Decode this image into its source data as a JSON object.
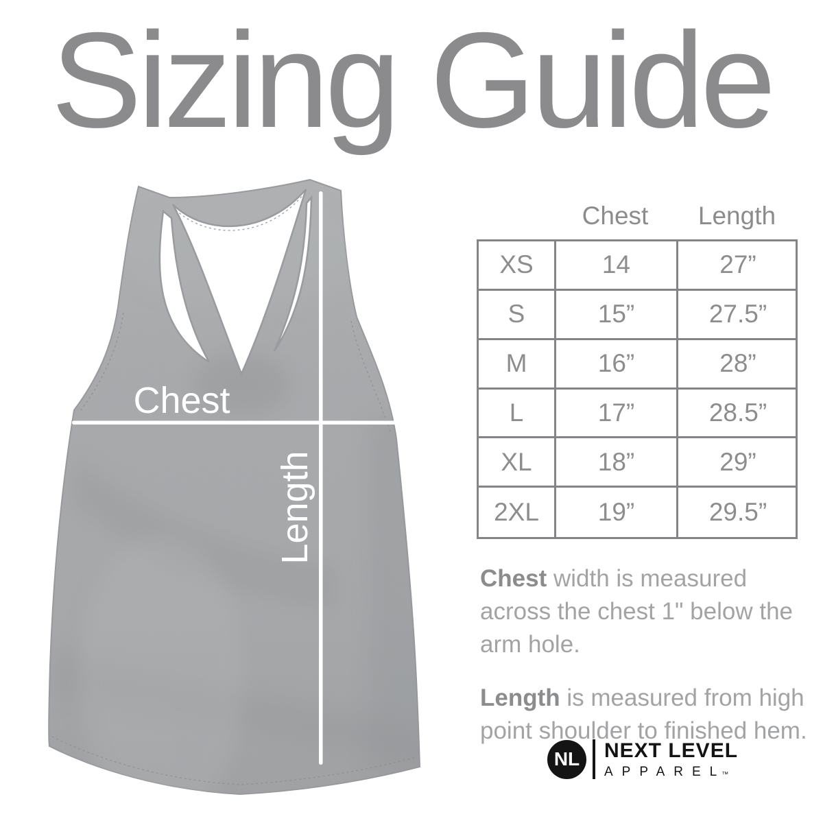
{
  "title": "Sizing Guide",
  "garment": {
    "chest_label": "Chest",
    "length_label": "Length"
  },
  "size_table": {
    "col_headers": [
      "Chest",
      "Length"
    ],
    "rows": [
      {
        "size": "XS",
        "chest": "14",
        "length": "27”"
      },
      {
        "size": "S",
        "chest": "15”",
        "length": "27.5”"
      },
      {
        "size": "M",
        "chest": "16”",
        "length": "28”"
      },
      {
        "size": "L",
        "chest": "17”",
        "length": "28.5”"
      },
      {
        "size": "XL",
        "chest": "18”",
        "length": "29”"
      },
      {
        "size": "2XL",
        "chest": "19”",
        "length": "29.5”"
      }
    ]
  },
  "notes": [
    {
      "term": "Chest",
      "text": " width is measured across the chest 1\" below the arm hole."
    },
    {
      "term": "Length",
      "text": " is measured from high point shoulder to finished hem."
    }
  ],
  "logo": {
    "monogram": "NL",
    "brand": "NEXT LEVEL",
    "sub": "APPAREL",
    "tm": "™"
  },
  "colors": {
    "title_gray": "#8b8b8d",
    "table_border_gray": "#838488",
    "table_text_gray": "#8c8d8f",
    "note_text_gray": "#a2a3a5",
    "heather_gray": "#a8aaac",
    "measure_line_white": "#ffffff",
    "logo_black": "#141414"
  }
}
